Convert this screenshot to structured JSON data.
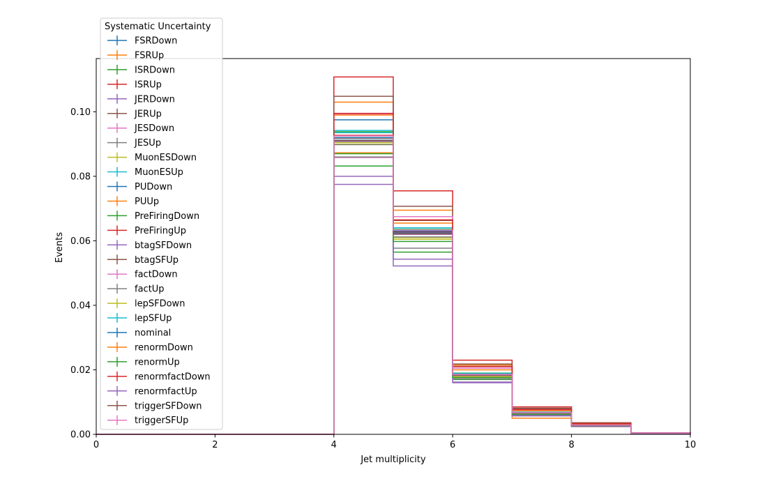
{
  "chart_data": {
    "type": "line",
    "xlabel": "Jet multiplicity",
    "ylabel": "Events",
    "xlim": [
      0,
      10
    ],
    "ylim": [
      0,
      0.1165
    ],
    "x_ticks": [
      0,
      2,
      4,
      6,
      8,
      10
    ],
    "y_ticks": [
      0.0,
      0.02,
      0.04,
      0.06,
      0.08,
      0.1
    ],
    "x_tick_labels": [
      "0",
      "2",
      "4",
      "6",
      "8",
      "10"
    ],
    "y_tick_labels": [
      "0.00",
      "0.02",
      "0.04",
      "0.06",
      "0.08",
      "0.10"
    ],
    "grid": false,
    "bin_edges": [
      0,
      1,
      2,
      3,
      4,
      5,
      6,
      7,
      8,
      9,
      10
    ],
    "legend": {
      "title": "Systematic Uncertainty",
      "placement": "upper-left"
    },
    "series": [
      {
        "name": "FSRDown",
        "color": "#1f77b4",
        "values": [
          0,
          0,
          0,
          0,
          0.0975,
          0.064,
          0.0185,
          0.0068,
          0.003,
          0.0004
        ]
      },
      {
        "name": "FSRUp",
        "color": "#ff7f0e",
        "values": [
          0,
          0,
          0,
          0,
          0.103,
          0.0695,
          0.0215,
          0.0078,
          0.0034,
          0.0004
        ]
      },
      {
        "name": "ISRDown",
        "color": "#2ca02c",
        "values": [
          0,
          0,
          0,
          0,
          0.0832,
          0.0565,
          0.017,
          0.006,
          0.0026,
          0.0003
        ]
      },
      {
        "name": "ISRUp",
        "color": "#d62728",
        "values": [
          0,
          0,
          0,
          0,
          0.1108,
          0.0755,
          0.023,
          0.0085,
          0.0036,
          0.0005
        ]
      },
      {
        "name": "JERDown",
        "color": "#9467bd",
        "values": [
          0,
          0,
          0,
          0,
          0.08,
          0.0543,
          0.0162,
          0.0058,
          0.0025,
          0.0003
        ]
      },
      {
        "name": "JERUp",
        "color": "#8c564b",
        "values": [
          0,
          0,
          0,
          0,
          0.1048,
          0.0707,
          0.0218,
          0.0081,
          0.0035,
          0.0004
        ]
      },
      {
        "name": "JESDown",
        "color": "#e377c2",
        "values": [
          0,
          0,
          0,
          0,
          0.0858,
          0.0622,
          0.0178,
          0.0064,
          0.0028,
          0.0003
        ]
      },
      {
        "name": "JESUp",
        "color": "#7f7f7f",
        "values": [
          0,
          0,
          0,
          0,
          0.086,
          0.0577,
          0.0172,
          0.0062,
          0.0027,
          0.0003
        ]
      },
      {
        "name": "MuonESDown",
        "color": "#bcbd22",
        "values": [
          0,
          0,
          0,
          0,
          0.09,
          0.061,
          0.0182,
          0.0066,
          0.0029,
          0.0004
        ]
      },
      {
        "name": "MuonESUp",
        "color": "#17becf",
        "values": [
          0,
          0,
          0,
          0,
          0.0942,
          0.064,
          0.019,
          0.0069,
          0.003,
          0.0004
        ]
      },
      {
        "name": "PUDown",
        "color": "#1f77b4",
        "values": [
          0,
          0,
          0,
          0,
          0.0912,
          0.0625,
          0.0186,
          0.0067,
          0.0029,
          0.0004
        ]
      },
      {
        "name": "PUUp",
        "color": "#ff7f0e",
        "values": [
          0,
          0,
          0,
          0,
          0.0873,
          0.062,
          0.018,
          0.005,
          0.0024,
          0.0003
        ]
      },
      {
        "name": "PreFiringDown",
        "color": "#2ca02c",
        "values": [
          0,
          0,
          0,
          0,
          0.0938,
          0.0635,
          0.0189,
          0.0068,
          0.003,
          0.0004
        ]
      },
      {
        "name": "PreFiringUp",
        "color": "#d62728",
        "values": [
          0,
          0,
          0,
          0,
          0.0927,
          0.0628,
          0.0187,
          0.0067,
          0.0029,
          0.0004
        ]
      },
      {
        "name": "btagSFDown",
        "color": "#9467bd",
        "values": [
          0,
          0,
          0,
          0,
          0.0775,
          0.0522,
          0.016,
          0.0057,
          0.0024,
          0.0003
        ]
      },
      {
        "name": "btagSFUp",
        "color": "#8c564b",
        "values": [
          0,
          0,
          0,
          0,
          0.0918,
          0.0663,
          0.0211,
          0.0079,
          0.0034,
          0.0004
        ]
      },
      {
        "name": "factDown",
        "color": "#e377c2",
        "values": [
          0,
          0,
          0,
          0,
          0.0993,
          0.0675,
          0.0205,
          0.0075,
          0.0032,
          0.0004
        ]
      },
      {
        "name": "factUp",
        "color": "#7f7f7f",
        "values": [
          0,
          0,
          0,
          0,
          0.0898,
          0.0612,
          0.0181,
          0.0065,
          0.0028,
          0.0003
        ]
      },
      {
        "name": "lepSFDown",
        "color": "#bcbd22",
        "values": [
          0,
          0,
          0,
          0,
          0.0905,
          0.0605,
          0.0179,
          0.0065,
          0.0028,
          0.0003
        ]
      },
      {
        "name": "lepSFUp",
        "color": "#17becf",
        "values": [
          0,
          0,
          0,
          0,
          0.0935,
          0.0632,
          0.0188,
          0.0068,
          0.003,
          0.0004
        ]
      },
      {
        "name": "nominal",
        "color": "#1f77b4",
        "values": [
          0,
          0,
          0,
          0,
          0.092,
          0.063,
          0.0185,
          0.0067,
          0.0029,
          0.0004
        ]
      },
      {
        "name": "renormDown",
        "color": "#ff7f0e",
        "values": [
          0,
          0,
          0,
          0,
          0.099,
          0.0655,
          0.02,
          0.0073,
          0.0031,
          0.0004
        ]
      },
      {
        "name": "renormUp",
        "color": "#2ca02c",
        "values": [
          0,
          0,
          0,
          0,
          0.087,
          0.0598,
          0.0176,
          0.0063,
          0.0027,
          0.0003
        ]
      },
      {
        "name": "renormfactDown",
        "color": "#d62728",
        "values": [
          0,
          0,
          0,
          0,
          0.0995,
          0.0665,
          0.021,
          0.0077,
          0.0033,
          0.0004
        ]
      },
      {
        "name": "renormfactUp",
        "color": "#9467bd",
        "values": [
          0,
          0,
          0,
          0,
          0.0908,
          0.062,
          0.0183,
          0.0066,
          0.0028,
          0.0003
        ]
      },
      {
        "name": "triggerSFDown",
        "color": "#8c564b",
        "values": [
          0,
          0,
          0,
          0,
          0.0911,
          0.0622,
          0.0184,
          0.0066,
          0.0029,
          0.0004
        ]
      },
      {
        "name": "triggerSFUp",
        "color": "#e377c2",
        "values": [
          0,
          0,
          0,
          0,
          0.0925,
          0.0633,
          0.0186,
          0.0067,
          0.0029,
          0.0004
        ]
      }
    ]
  }
}
